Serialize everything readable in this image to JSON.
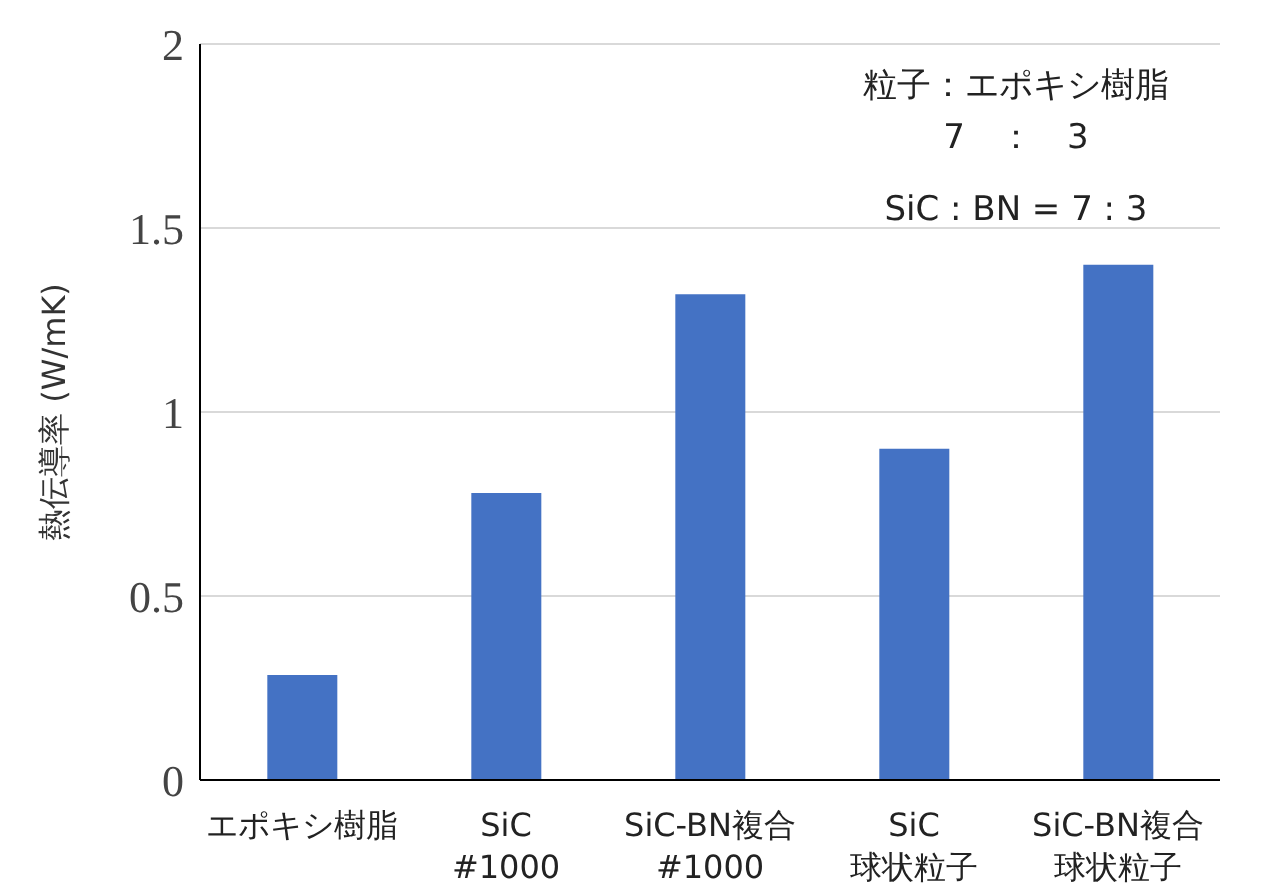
{
  "chart_data": {
    "type": "bar",
    "ylabel": "熱伝導率 (W/mK)",
    "categories": [
      "エポキシ樹脂",
      "SiC\n#1000",
      "SiC-BN複合\n#1000",
      "SiC\n球状粒子",
      "SiC-BN複合球状粒子"
    ],
    "values": [
      0.285,
      0.78,
      1.32,
      0.9,
      1.4
    ],
    "color": "#4472c4",
    "ylim": [
      0,
      2
    ],
    "yticks": [
      0,
      0.5,
      1,
      1.5,
      2
    ],
    "grid": "y",
    "annotations": [
      "粒子：エポキシ樹脂\n7　：　3",
      "SiC : BN = 7 : 3"
    ]
  }
}
